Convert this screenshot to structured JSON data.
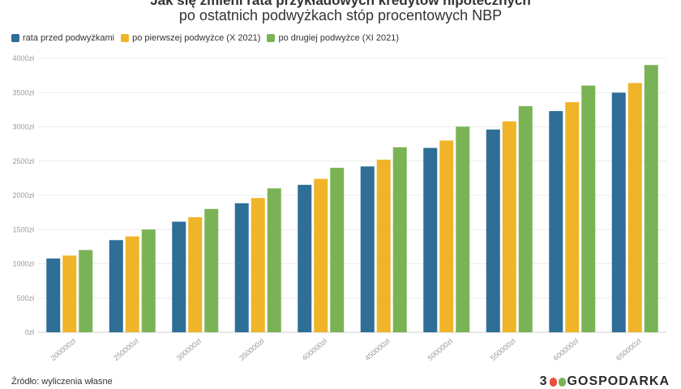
{
  "chart_data": {
    "type": "bar",
    "title": "Jak się zmieni rata przykładowych kredytów hipotecznych",
    "subtitle": "po ostatnich podwyżkach stóp procentowych NBP",
    "categories": [
      "200000zł",
      "250000zł",
      "300000zł",
      "350000zł",
      "400000zł",
      "450000zł",
      "500000zł",
      "550000zł",
      "600000zł",
      "650000zł"
    ],
    "series": [
      {
        "name": "rata przed podwyżkami",
        "color": "#2e6e97",
        "values": [
          1077,
          1346,
          1615,
          1884,
          2153,
          2422,
          2692,
          2961,
          3230,
          3499
        ]
      },
      {
        "name": "po pierwszej podwyżce (X 2021)",
        "color": "#f0b429",
        "values": [
          1120,
          1400,
          1680,
          1960,
          2240,
          2520,
          2800,
          3080,
          3360,
          3640
        ]
      },
      {
        "name": "po drugiej podwyżce (XI 2021)",
        "color": "#7ab356",
        "values": [
          1201,
          1501,
          1801,
          2102,
          2402,
          2702,
          3003,
          3303,
          3603,
          3903
        ]
      }
    ],
    "yticks": [
      "0zł",
      "500zł",
      "1000zł",
      "1500zł",
      "2000zł",
      "2500zł",
      "3000zł",
      "3500zł",
      "4000zł"
    ],
    "ylim": [
      0,
      4000
    ],
    "grid": true,
    "legend": "top-left"
  },
  "source": "Źródło: wyliczenia własne",
  "brand": {
    "number": "300",
    "name": "GOSPODARKA",
    "dot_colors": [
      "#e94f3d",
      "#7ab356"
    ]
  }
}
